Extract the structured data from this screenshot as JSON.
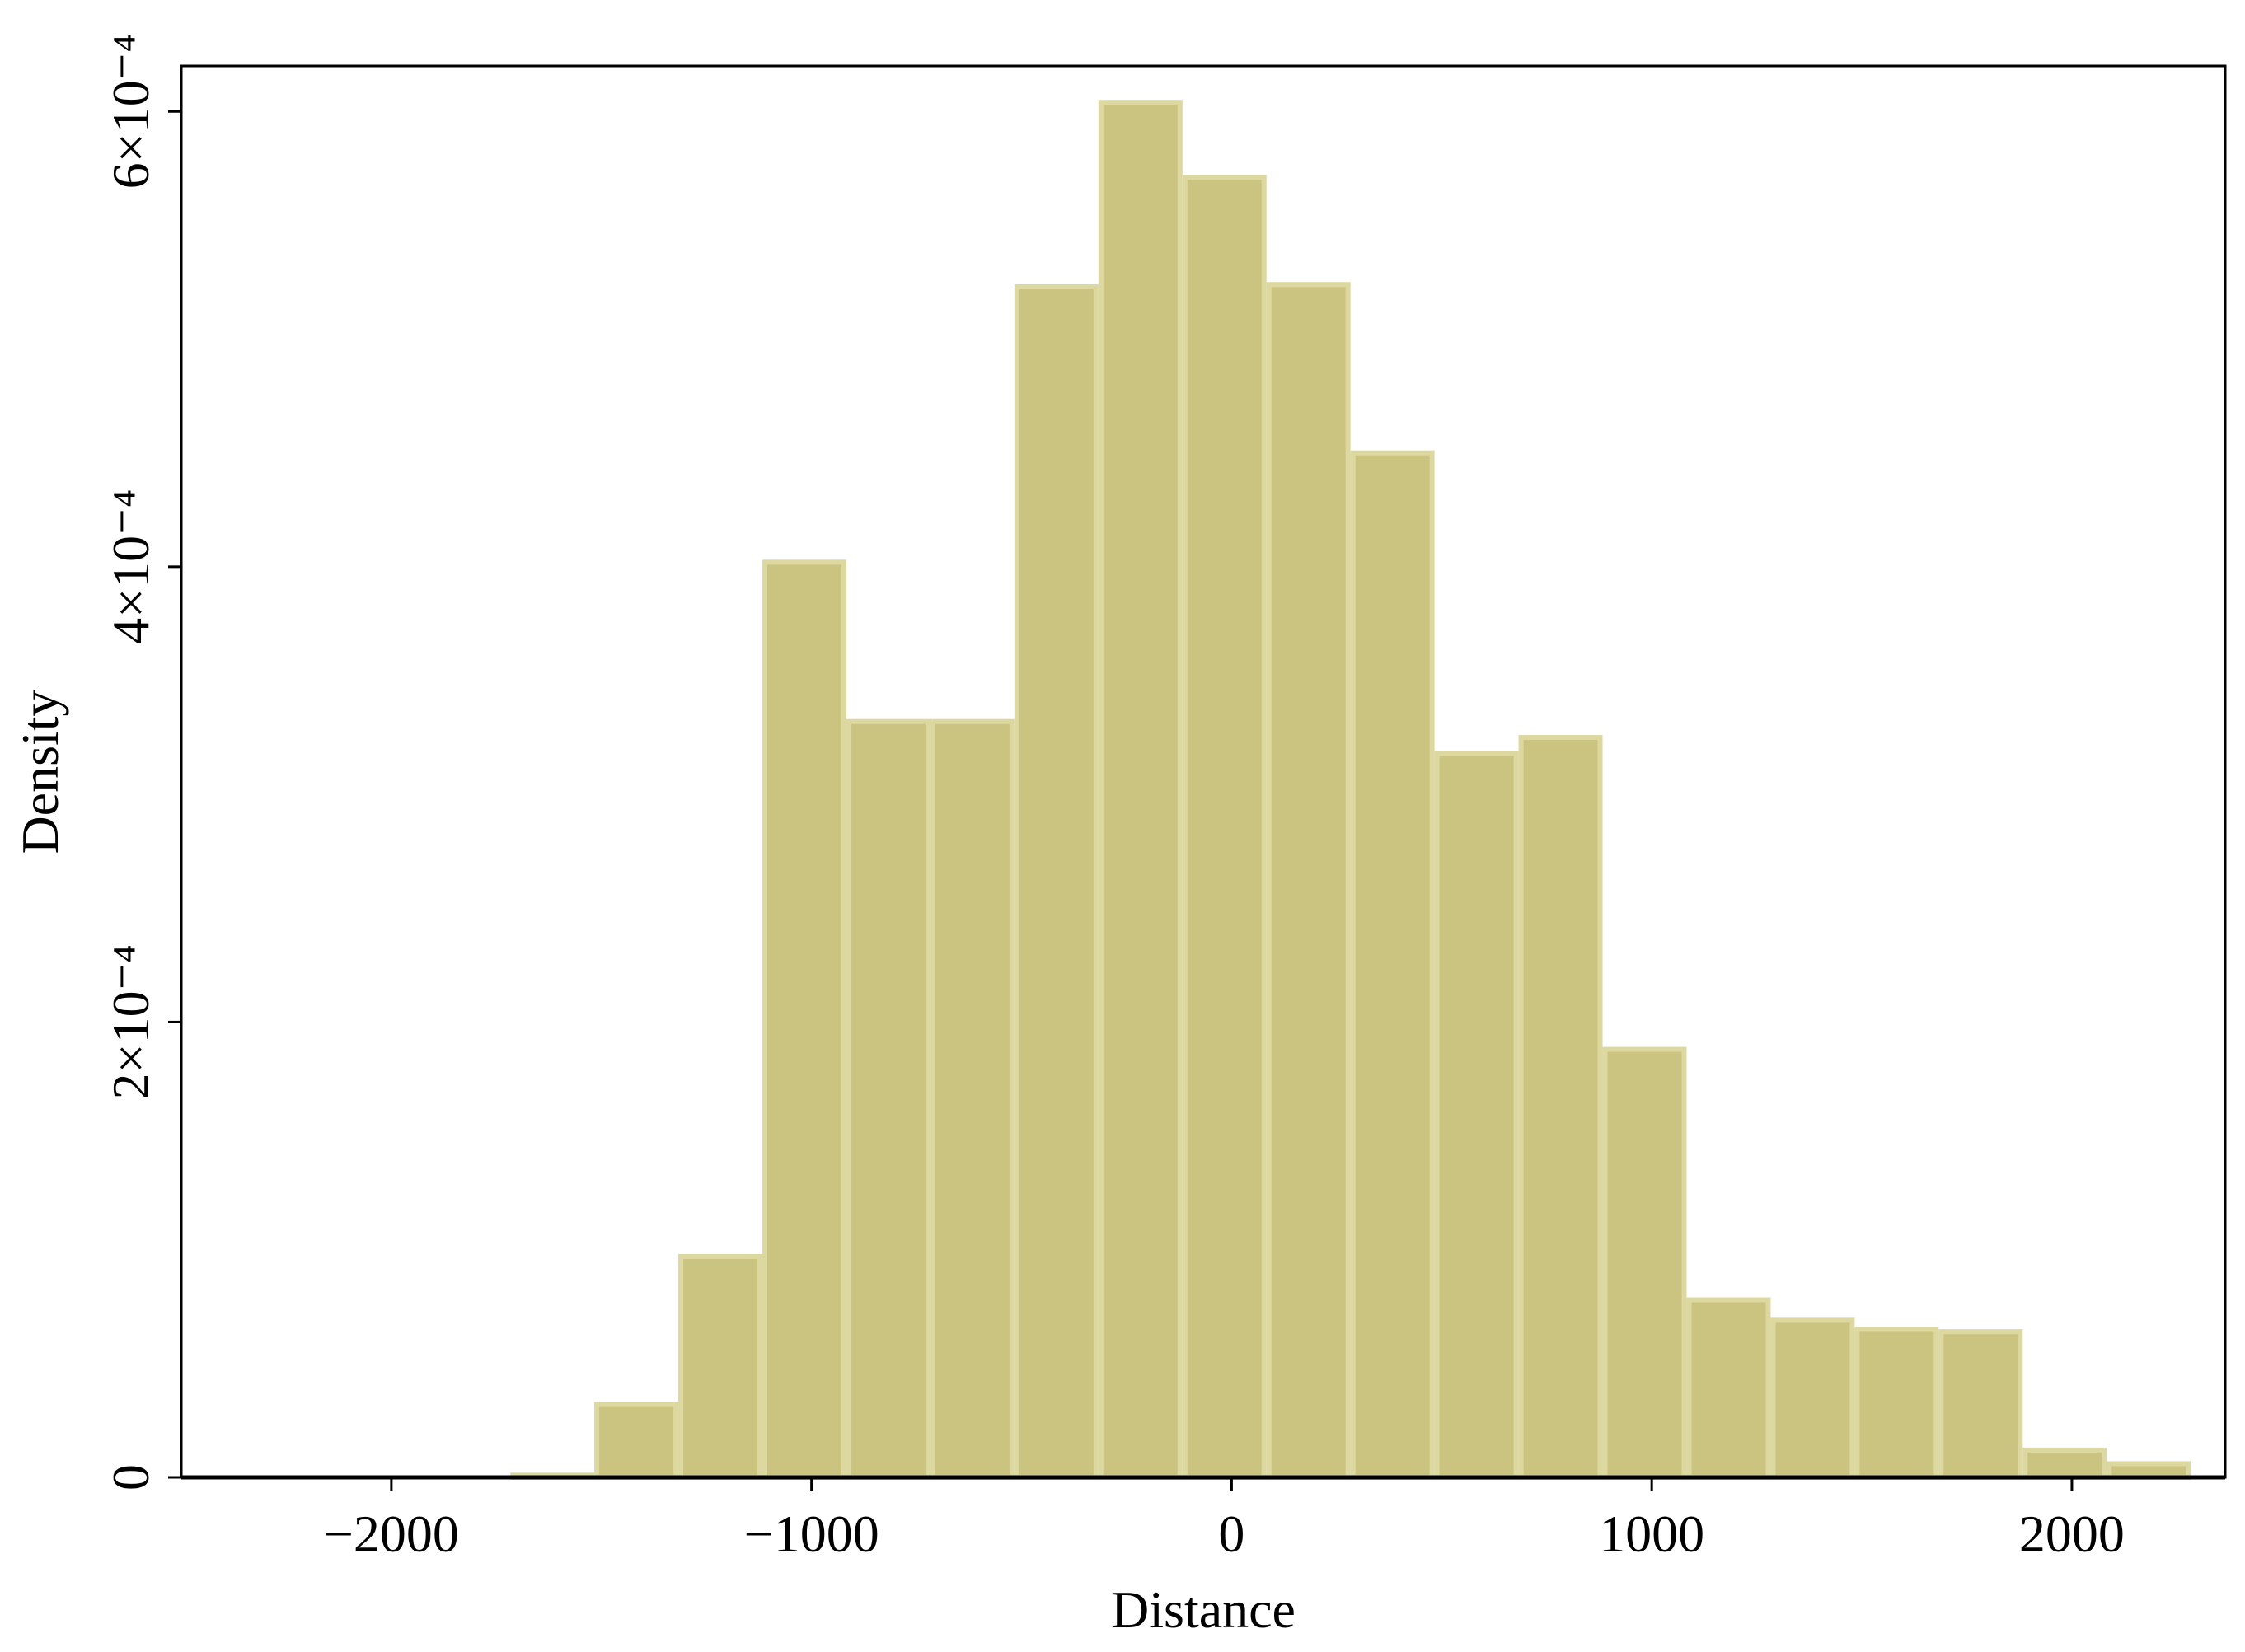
{
  "chart_data": {
    "type": "histogram",
    "x_label": "Distance",
    "y_label": "Density",
    "bins": [
      -1717,
      -1517,
      -1317,
      -1117,
      -917,
      -717,
      -517,
      -317,
      -117,
      83,
      283,
      483,
      683,
      883,
      1083,
      1283,
      1483,
      1683,
      1883,
      2083,
      2283
    ],
    "values": [
      1e-06,
      3.2e-05,
      9.7e-05,
      0.000402,
      0.000332,
      0.000332,
      0.000523,
      0.000604,
      0.000571,
      0.000524,
      0.00045,
      0.000318,
      0.000325,
      0.000188,
      7.8e-05,
      6.9e-05,
      6.5e-05,
      6.4e-05,
      1.2e-05,
      6e-06
    ],
    "color": "#cbc480",
    "edge_color": "#ddd8a0",
    "xlim": [
      -2500,
      2365
    ],
    "ylim": [
      0,
      0.00062
    ],
    "xticks": [
      {
        "value": -2000,
        "label": "−2000"
      },
      {
        "value": -1000,
        "label": "−1000"
      },
      0,
      1000,
      2000
    ],
    "yticks": [
      0,
      {
        "value": 0.0002,
        "label": "2×10⁻⁴"
      },
      {
        "value": 0.0004,
        "label": "4×10⁻⁴"
      },
      {
        "value": 0.0006,
        "label": "6×10⁻⁴"
      }
    ]
  }
}
